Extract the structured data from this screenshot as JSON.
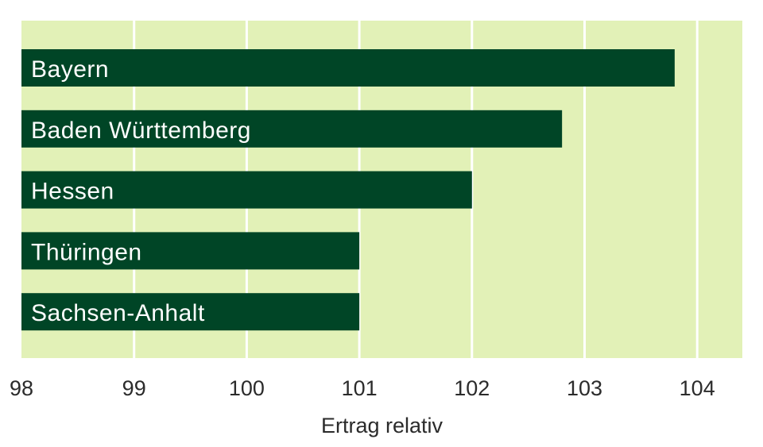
{
  "chart_data": {
    "type": "bar",
    "orientation": "horizontal",
    "categories": [
      "Bayern",
      "Baden Württemberg",
      "Hessen",
      "Thüringen",
      "Sachsen-Anhalt"
    ],
    "values": [
      103.8,
      102.8,
      102.0,
      101.0,
      101.0
    ],
    "xlabel": "Ertrag relativ",
    "xlim": [
      98,
      104.4
    ],
    "x_ticks": [
      "98",
      "99",
      "100",
      "101",
      "102",
      "103",
      "104"
    ],
    "grid": "vertical",
    "colors": {
      "plot_background": "#e2f1b7",
      "bar": "#004526",
      "grid": "#ffffff",
      "bar_label": "#ffffff"
    }
  }
}
